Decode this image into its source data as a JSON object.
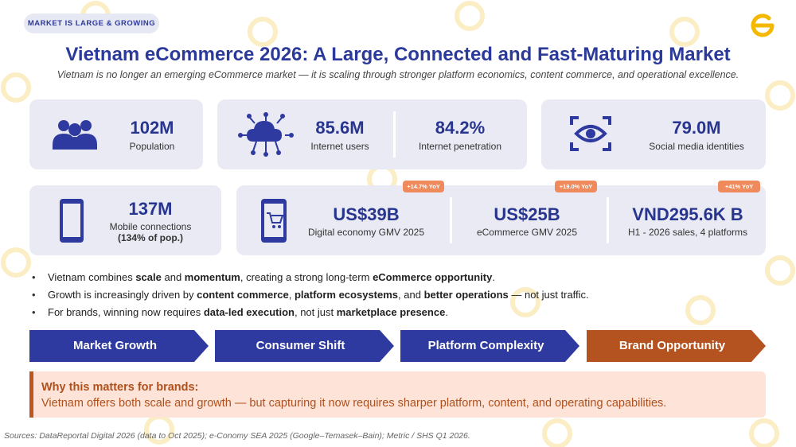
{
  "tag": "MARKET IS LARGE & GROWING",
  "title": "Vietnam eCommerce 2026: A Large, Connected and Fast-Maturing Market",
  "subtitle": "Vietnam is no longer an emerging eCommerce market — it is scaling through stronger platform economics, content commerce, and operational excellence.",
  "metrics_row1": [
    {
      "value": "102M",
      "label": "Population"
    },
    {
      "value": "85.6M",
      "label": "Internet users"
    },
    {
      "value": "84.2%",
      "label": "Internet penetration"
    },
    {
      "value": "79.0M",
      "label": "Social media identities"
    }
  ],
  "metrics_row2": [
    {
      "value": "137M",
      "label": "Mobile connections",
      "note": "(134% of pop.)"
    },
    {
      "value": "US$39B",
      "label": "Digital economy GMV 2025",
      "badge": "+14.7% YoY"
    },
    {
      "value": "US$25B",
      "label": "eCommerce GMV 2025",
      "badge": "+19.0% YoY"
    },
    {
      "value": "VND295.6K B",
      "label": "H1 - 2026 sales, 4 platforms",
      "badge": "+41% YoY"
    }
  ],
  "bullets": [
    [
      "Vietnam combines ",
      "scale",
      " and ",
      "momentum",
      ", creating a strong long-term ",
      "eCommerce opportunity",
      "."
    ],
    [
      "Growth is increasingly driven by ",
      "content commerce",
      ", ",
      "platform ecosystems",
      ", and ",
      "better operations",
      " — not just traffic."
    ],
    [
      "For brands, winning now requires ",
      "data-led execution",
      ", not just ",
      "marketplace presence",
      "."
    ]
  ],
  "steps": [
    "Market Growth",
    "Consumer Shift",
    "Platform Complexity",
    "Brand Opportunity"
  ],
  "callout": {
    "title": "Why this matters for brands:",
    "text": "Vietnam offers both scale and growth — but capturing it now requires sharper platform, content, and operating capabilities."
  },
  "sources": "Sources: DataReportal Digital 2026 (data to Oct 2025); e-Conomy SEA 2025 (Google–Temasek–Bain); Metric / SHS Q1 2026."
}
